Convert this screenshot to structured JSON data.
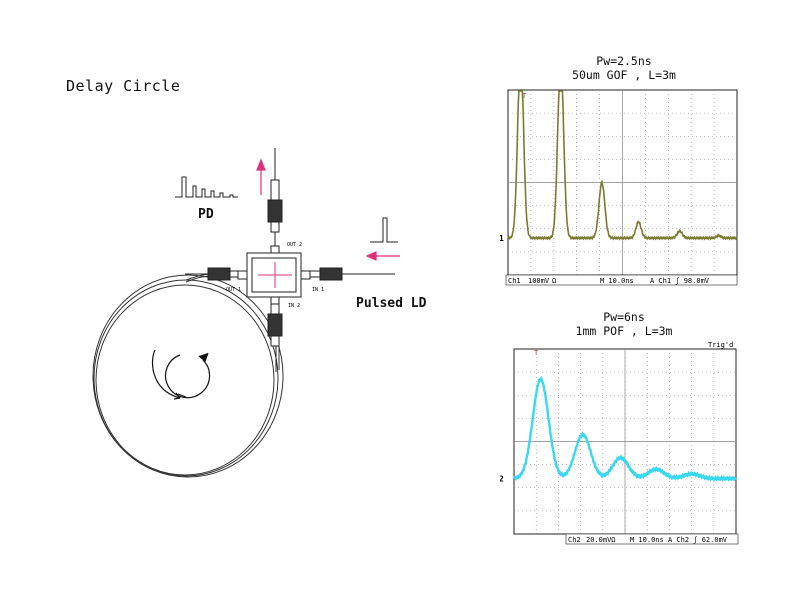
{
  "title": "Delay Circle",
  "labels": {
    "pd": "PD",
    "pulsed_ld": "Pulsed LD",
    "coupler_ports": {
      "out2": "OUT 2",
      "out1": "OUT 1",
      "in1": "IN 1",
      "in2": "IN 2"
    }
  },
  "colors": {
    "trace1": "#7a7a30",
    "trace2": "#39d8ee",
    "arrow": "#e0307a",
    "grid": "#888888"
  },
  "scopes": [
    {
      "title_line1": "Pw=2.5ns",
      "title_line2": "50um GOF , L=3m",
      "channel_marker": "1",
      "trigger_marker": "T",
      "status": {
        "channel": "Ch1",
        "volts": "100mV",
        "coupling": "Ω",
        "time": "M 10.0ns",
        "trig": "A  Ch1 ʃ  98.0mV"
      },
      "chart_data": {
        "type": "line",
        "x_divisions": 10,
        "y_divisions": 8,
        "baseline_div": 1.6,
        "pulses": [
          {
            "x_div": 0.55,
            "height_div": 8.0,
            "width_div": 0.18
          },
          {
            "x_div": 2.3,
            "height_div": 7.8,
            "width_div": 0.18
          },
          {
            "x_div": 4.1,
            "height_div": 2.4,
            "width_div": 0.18
          },
          {
            "x_div": 5.7,
            "height_div": 0.7,
            "width_div": 0.16
          },
          {
            "x_div": 7.5,
            "height_div": 0.3,
            "width_div": 0.16
          },
          {
            "x_div": 9.2,
            "height_div": 0.1,
            "width_div": 0.14
          }
        ]
      }
    },
    {
      "title_line1": "Pw=6ns",
      "title_line2": "1mm POF , L=3m",
      "channel_marker": "2",
      "trigger_marker": "T",
      "corner_text": "Trig'd",
      "status": {
        "channel": "Ch2",
        "volts": "20.0mVΩ",
        "time": "M 10.0ns",
        "trig": "A  Ch2 ʃ  62.0mV"
      },
      "chart_data": {
        "type": "line",
        "x_divisions": 10,
        "y_divisions": 8,
        "baseline_div": 2.4,
        "pulses": [
          {
            "x_div": 1.2,
            "height_div": 4.3,
            "width_div": 0.5
          },
          {
            "x_div": 3.1,
            "height_div": 1.9,
            "width_div": 0.5
          },
          {
            "x_div": 4.8,
            "height_div": 0.9,
            "width_div": 0.5
          },
          {
            "x_div": 6.4,
            "height_div": 0.4,
            "width_div": 0.5
          },
          {
            "x_div": 8.0,
            "height_div": 0.2,
            "width_div": 0.5
          }
        ]
      }
    }
  ]
}
